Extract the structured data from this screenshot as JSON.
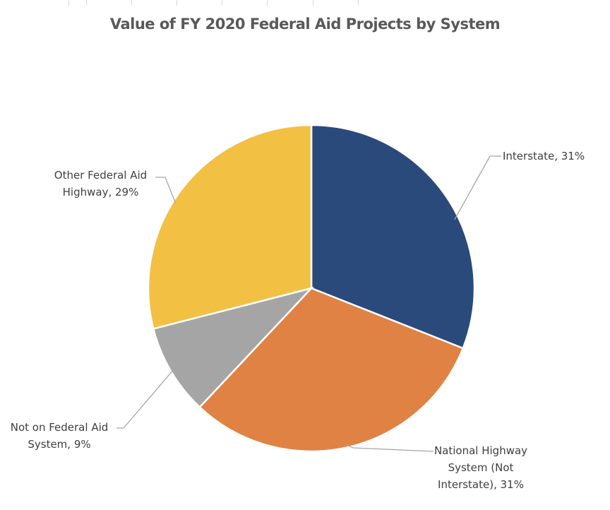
{
  "chart_data": {
    "type": "pie",
    "title": "Value of FY 2020 Federal Aid Projects by System",
    "start_angle": "12 o'clock",
    "direction": "clockwise",
    "slices": [
      {
        "label": "Interstate",
        "value": 31,
        "data_label": "Interstate, 31%",
        "color": "#2a4a7b"
      },
      {
        "label": "National Highway System (Not Interstate)",
        "value": 31,
        "data_label": "National Highway\nSystem (Not\nInterstate), 31%",
        "color": "#e08243"
      },
      {
        "label": "Not on Federal Aid System",
        "value": 9,
        "data_label": "Not on Federal Aid\nSystem, 9%",
        "color": "#a5a5a5"
      },
      {
        "label": "Other Federal Aid Highway",
        "value": 29,
        "data_label": "Other Federal Aid\nHighway, 29%",
        "color": "#f2c043"
      }
    ],
    "legend": "none"
  }
}
